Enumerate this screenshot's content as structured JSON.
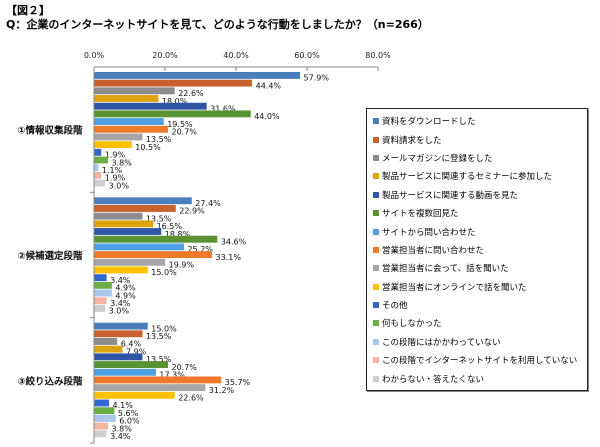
{
  "figure_label": "【図２】",
  "title": "Q：企業のインターネットサイトを見て、どのような行動をしましたか？（n=266）",
  "chart_data": {
    "type": "bar",
    "orientation": "horizontal",
    "title": "Q：企業のインターネットサイトを見て、どのような行動をしましたか？（n=266）",
    "xlabel": "",
    "ylabel": "",
    "xlim": [
      0,
      80
    ],
    "x_ticks": [
      "0.0%",
      "20.0%",
      "40.0%",
      "60.0%",
      "80.0%"
    ],
    "x_tick_values": [
      0,
      20,
      40,
      60,
      80
    ],
    "axis_position": "top",
    "grid": false,
    "legend_position": "right",
    "unit": "%",
    "categories": [
      "①情報収集段階",
      "②候補選定段階",
      "③絞り込み段階"
    ],
    "series": [
      {
        "name": "資料をダウンロードした",
        "color": "#4A7EBB",
        "values": [
          57.9,
          27.4,
          15.0
        ]
      },
      {
        "name": "資料請求をした",
        "color": "#C8612A",
        "values": [
          44.4,
          22.9,
          13.5
        ]
      },
      {
        "name": "メールマガジンに登録をした",
        "color": "#8C8C8C",
        "values": [
          22.6,
          13.5,
          6.4
        ]
      },
      {
        "name": "製品サービスに関連するセミナーに参加した",
        "color": "#DCA30C",
        "values": [
          18.0,
          16.5,
          7.9
        ]
      },
      {
        "name": "製品サービスに関連する動画を見た",
        "color": "#2E55A6",
        "values": [
          31.6,
          18.8,
          13.5
        ]
      },
      {
        "name": "サイトを複数回見た",
        "color": "#5A9333",
        "values": [
          44.0,
          34.6,
          20.7
        ]
      },
      {
        "name": "サイトから問い合わせた",
        "color": "#4F9FE3",
        "values": [
          19.5,
          25.2,
          17.3
        ]
      },
      {
        "name": "営業担当者に問い合わせた",
        "color": "#F07A2A",
        "values": [
          20.7,
          33.1,
          35.7
        ]
      },
      {
        "name": "営業担当者に会って、話を聞いた",
        "color": "#A6A6A6",
        "values": [
          13.5,
          19.9,
          31.2
        ]
      },
      {
        "name": "営業担当者にオンラインで話を聞いた",
        "color": "#FFC000",
        "values": [
          10.5,
          15.0,
          22.6
        ]
      },
      {
        "name": "その他",
        "color": "#3366CC",
        "values": [
          1.9,
          3.4,
          4.1
        ]
      },
      {
        "name": "何もしなかった",
        "color": "#6CAE45",
        "values": [
          3.8,
          4.9,
          5.6
        ]
      },
      {
        "name": "この段階にはかかわっていない",
        "color": "#A9C6EC",
        "values": [
          1.1,
          4.9,
          6.0
        ]
      },
      {
        "name": "この段階でインターネットサイトを利用していない",
        "color": "#F4B6A0",
        "values": [
          1.9,
          3.4,
          3.8
        ]
      },
      {
        "name": "わからない・答えたくない",
        "color": "#CFCFCF",
        "values": [
          3.0,
          3.0,
          3.4
        ]
      }
    ]
  }
}
